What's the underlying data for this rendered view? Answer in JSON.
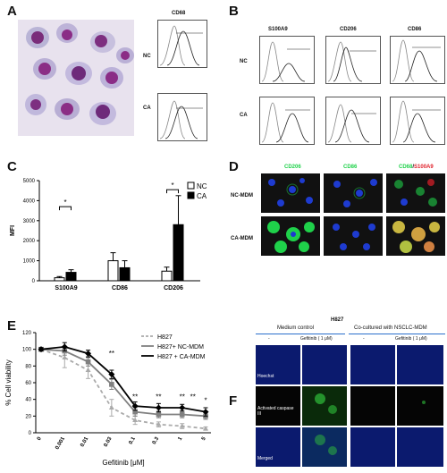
{
  "panels": {
    "a": "A",
    "b": "B",
    "c": "C",
    "d": "D",
    "e": "E",
    "f": "F"
  },
  "panelA": {
    "hist_title": "CD68",
    "rows": [
      "NC",
      "CA"
    ]
  },
  "panelB": {
    "columns": [
      "S100A9",
      "CD206",
      "CD86"
    ],
    "rows": [
      "NC",
      "CA"
    ]
  },
  "panelC": {
    "ylabel": "MFI",
    "legend": [
      "NC",
      "CA"
    ],
    "sig": "*",
    "chart_data": {
      "type": "bar",
      "categories": [
        "S100A9",
        "CD86",
        "CD206"
      ],
      "series": [
        {
          "name": "NC",
          "values": [
            150,
            1000,
            480
          ],
          "err": [
            60,
            400,
            200
          ]
        },
        {
          "name": "CA",
          "values": [
            420,
            650,
            2800
          ],
          "err": [
            130,
            350,
            1450
          ]
        }
      ],
      "ylim": [
        0,
        5000
      ],
      "yticks": [
        0,
        1000,
        2000,
        3000,
        4000,
        5000
      ],
      "colors": {
        "NC": "#ffffff",
        "CA": "#000000"
      }
    }
  },
  "panelD": {
    "columns": [
      "CD206",
      "CD86",
      "CD68",
      "/",
      "S100A9"
    ],
    "rows": [
      "NC-MDM",
      "CA-MDM"
    ],
    "colors": {
      "green": "#1fd14a",
      "red": "#e0202a"
    }
  },
  "panelE": {
    "ylabel": "% Cell viability",
    "xlabel": "Gefitinib [μM]",
    "sig_labels": [
      "**",
      "**",
      "**",
      "**",
      "**",
      "*"
    ],
    "chart_data": {
      "type": "line",
      "x": [
        "0",
        "0.001",
        "0.01",
        "0.03",
        "0.1",
        "0.3",
        "1",
        "5"
      ],
      "ylim": [
        0,
        120
      ],
      "yticks": [
        0,
        20,
        40,
        60,
        80,
        100,
        120
      ],
      "series": [
        {
          "name": "H827",
          "values": [
            100,
            90,
            75,
            30,
            15,
            10,
            8,
            5
          ],
          "err": [
            2,
            12,
            10,
            10,
            5,
            3,
            3,
            2
          ],
          "color": "#aaaaaa",
          "style": "dashed"
        },
        {
          "name": "H827+ NC-MDM",
          "values": [
            100,
            98,
            85,
            58,
            25,
            22,
            22,
            20
          ],
          "err": [
            2,
            5,
            5,
            6,
            5,
            4,
            4,
            4
          ],
          "color": "#808080",
          "style": "solid"
        },
        {
          "name": "H827 + CA-MDM",
          "values": [
            100,
            103,
            95,
            70,
            32,
            30,
            30,
            25
          ],
          "err": [
            2,
            5,
            4,
            5,
            5,
            5,
            4,
            5
          ],
          "color": "#000000",
          "style": "solid"
        }
      ]
    }
  },
  "panelF": {
    "title": "H827",
    "group1": "Medium control",
    "group2": "Co-cultured with NSCLC-MDM",
    "treat_minus": "-",
    "treat_gef": "Gefitinib ( 1 μM)",
    "rows": [
      "Hoechst",
      "Activated caspase III",
      "Merged"
    ]
  }
}
